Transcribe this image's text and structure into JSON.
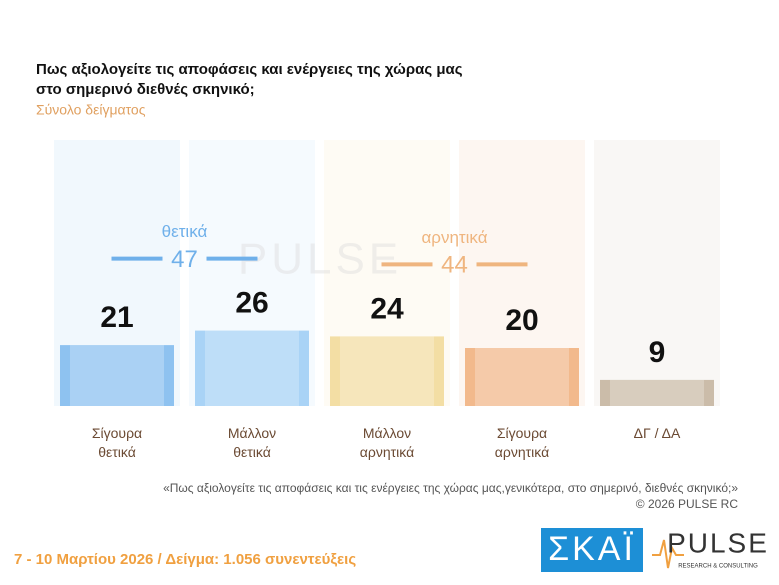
{
  "chart_data": {
    "type": "bar",
    "title": [
      "Πως αξιολογείτε τις αποφάσεις και ενέργειες της χώρας μας",
      "στο σημερινό διεθνές σκηνικό;"
    ],
    "subtitle": "Σύνολο δείγματος",
    "categories": [
      "Σίγουρα θετικά",
      "Μάλλον θετικά",
      "Μάλλον αρνητικά",
      "Σίγουρα αρνητικά",
      "ΔΓ / ΔΑ"
    ],
    "values": [
      21,
      26,
      24,
      20,
      9
    ],
    "colors": [
      "#8ec2f0",
      "#a9d3f6",
      "#f3dea4",
      "#f2b98c",
      "#cbbca9"
    ],
    "groups": [
      {
        "label": "θετικά",
        "value": 47,
        "color": "#6fb0ea",
        "categories": [
          0,
          1
        ]
      },
      {
        "label": "αρνητικά",
        "value": 44,
        "color": "#efb57f",
        "categories": [
          2,
          3
        ]
      }
    ],
    "note": "«Πως αξιολογείτε τις αποφάσεις και τις ενέργειες της χώρας μας,γενικότερα, στο σημερινό, διεθνές σκηνικό;»",
    "copyright": "©  2026  PULSE RC",
    "footer": "7 - 10  Μαρτίου 2026  /  Δείγμα:  1.056 συνεντεύξεις",
    "logos": {
      "channel": "ΣΚΑΪ",
      "brand": "PULSE",
      "brand_tagline": "RESEARCH & CONSULTING"
    }
  }
}
